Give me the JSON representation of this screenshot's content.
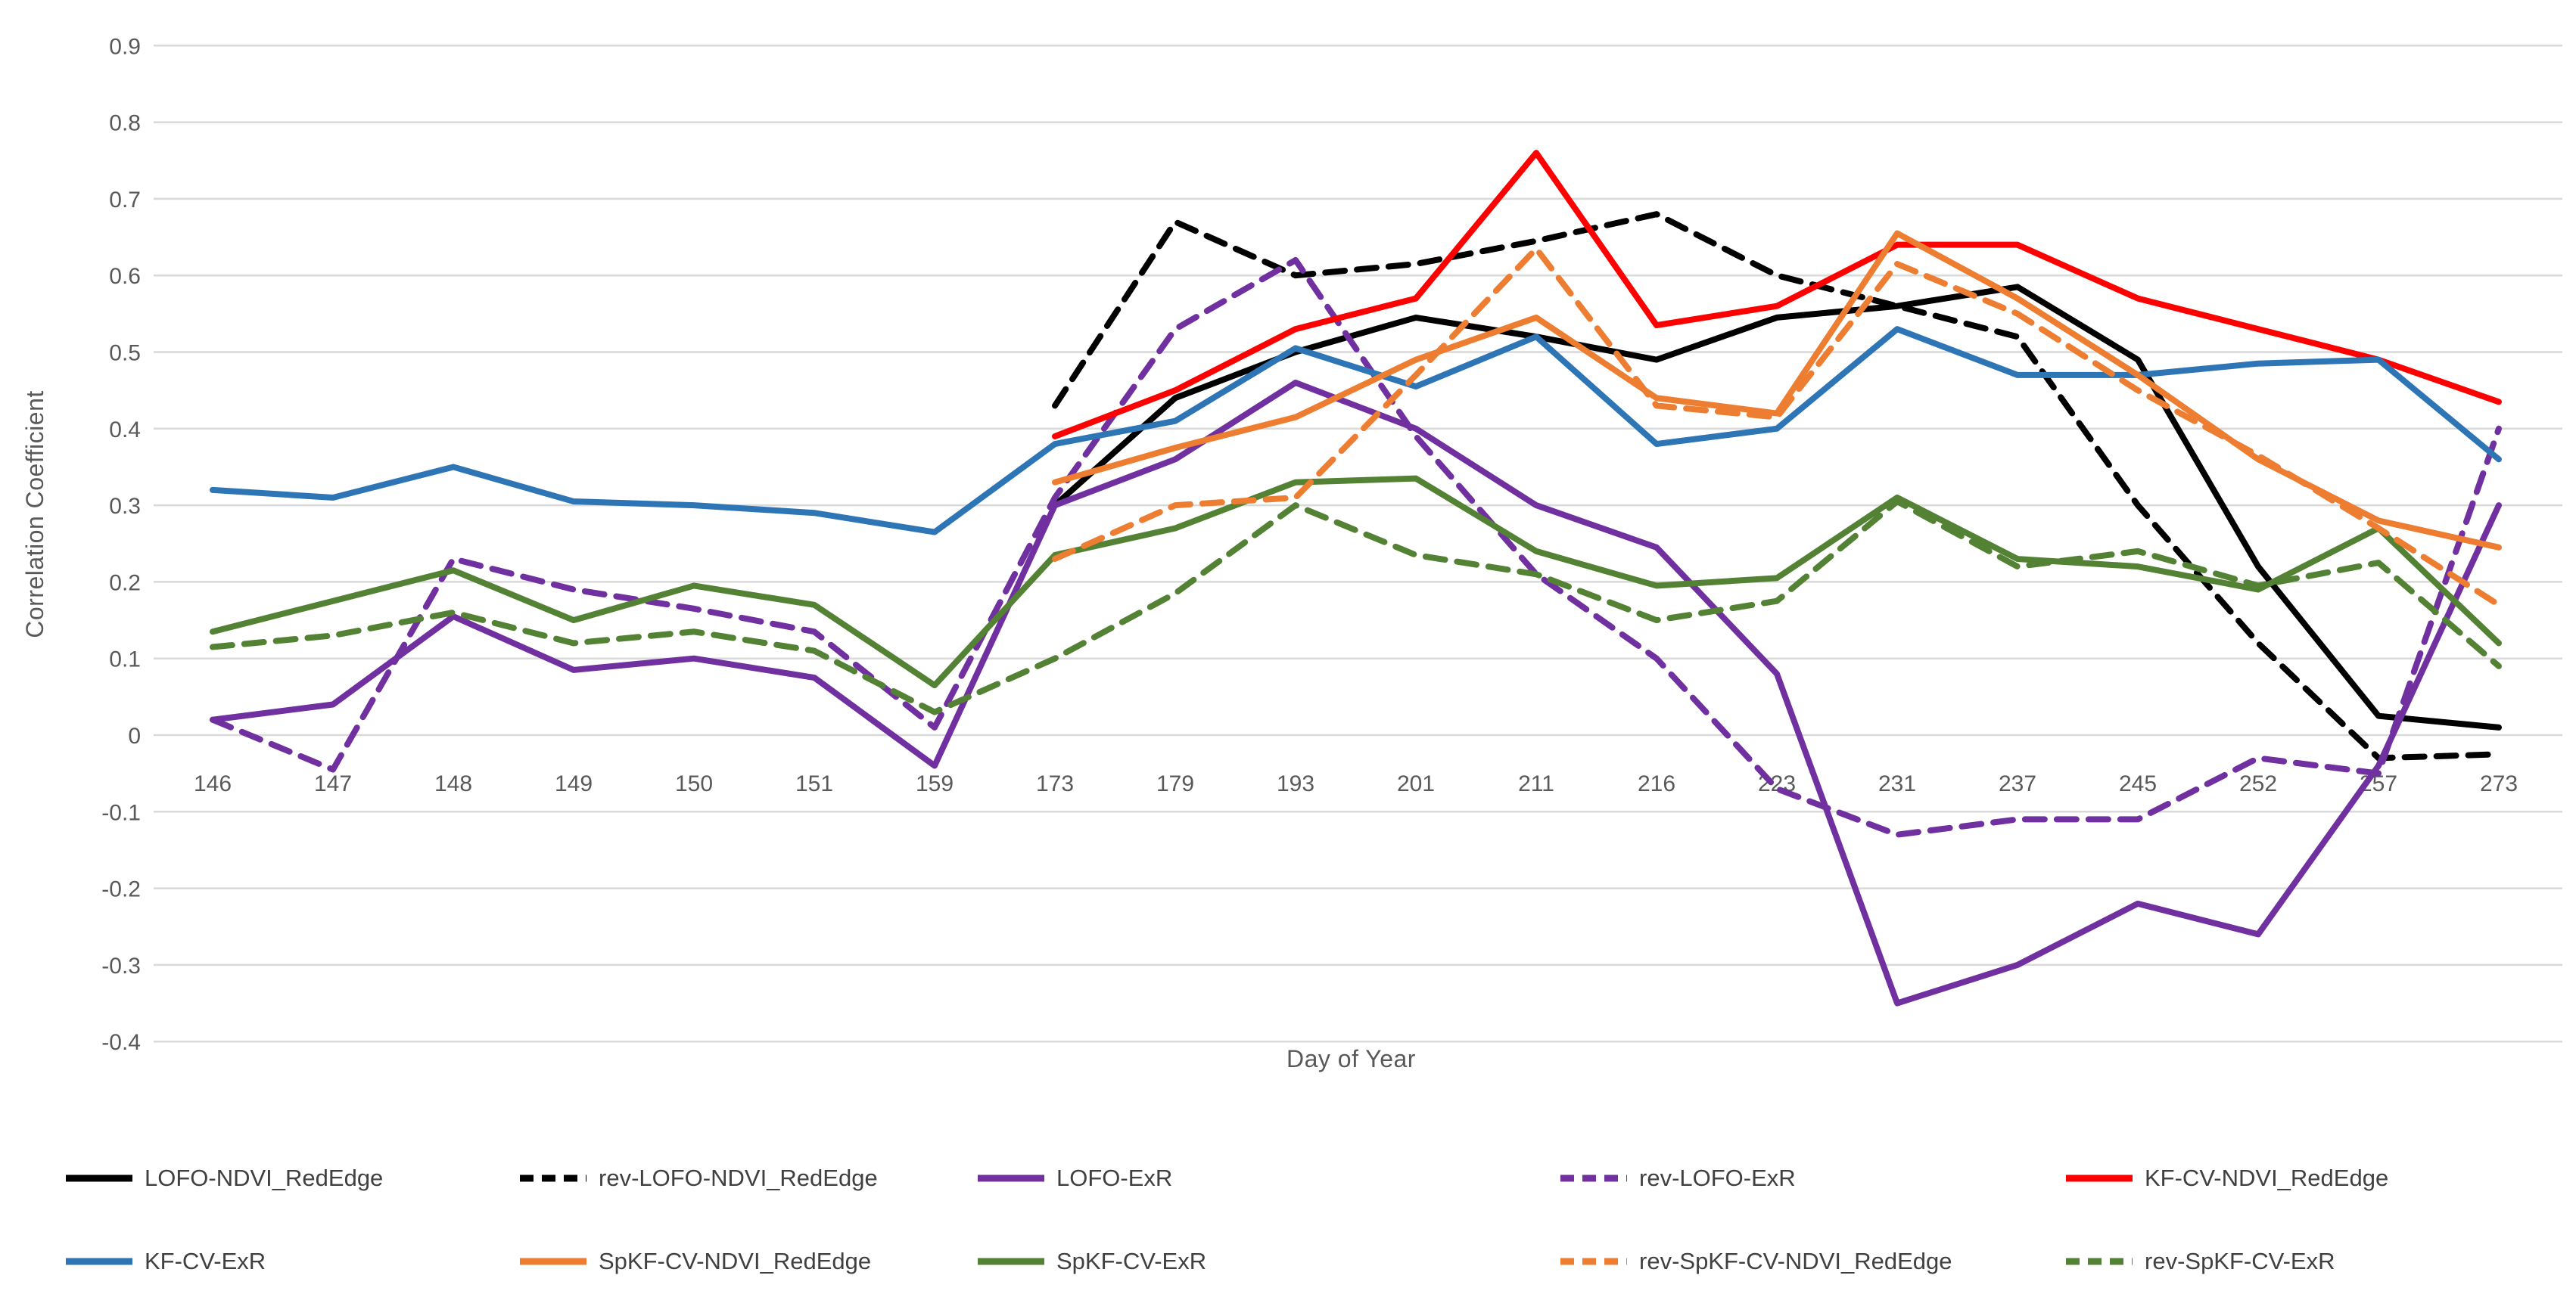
{
  "chart_data": {
    "type": "line",
    "title": "",
    "xlabel": "Day of Year",
    "ylabel": "Correlation Coefficient",
    "ylim": [
      -0.4,
      0.9
    ],
    "grid": true,
    "legend_position": "bottom",
    "ytick_labels": [
      "0.9",
      "0.8",
      "0.7",
      "0.6",
      "0.5",
      "0.4",
      "0.3",
      "0.2",
      "0.1",
      "0",
      "-0.1",
      "-0.2",
      "-0.3",
      "-0.4"
    ],
    "ytick_values": [
      0.9,
      0.8,
      0.7,
      0.6,
      0.5,
      0.4,
      0.3,
      0.2,
      0.1,
      0,
      -0.1,
      -0.2,
      -0.3,
      -0.4
    ],
    "categories": [
      "146",
      "147",
      "148",
      "149",
      "150",
      "151",
      "159",
      "173",
      "179",
      "193",
      "201",
      "211",
      "216",
      "223",
      "231",
      "237",
      "245",
      "252",
      "257",
      "273"
    ],
    "series": [
      {
        "name": "LOFO-NDVI_RedEdge",
        "color": "#000000",
        "dash": false,
        "values": [
          null,
          null,
          null,
          null,
          null,
          null,
          null,
          0.3,
          0.44,
          0.5,
          0.545,
          0.52,
          0.49,
          0.545,
          0.56,
          0.585,
          0.49,
          0.22,
          0.025,
          0.01
        ]
      },
      {
        "name": "rev-LOFO-NDVI_RedEdge",
        "color": "#000000",
        "dash": true,
        "values": [
          null,
          null,
          null,
          null,
          null,
          null,
          null,
          0.43,
          0.67,
          0.6,
          0.615,
          0.645,
          0.68,
          0.6,
          0.56,
          0.52,
          0.3,
          0.12,
          -0.03,
          -0.025
        ]
      },
      {
        "name": "LOFO-ExR",
        "color": "#7030A0",
        "dash": false,
        "values": [
          0.02,
          0.04,
          0.155,
          0.085,
          0.1,
          0.075,
          -0.04,
          0.3,
          0.36,
          0.46,
          0.4,
          0.3,
          0.245,
          0.08,
          -0.35,
          -0.3,
          -0.22,
          -0.26,
          -0.04,
          0.3
        ]
      },
      {
        "name": "rev-LOFO-ExR",
        "color": "#7030A0",
        "dash": true,
        "values": [
          0.02,
          -0.045,
          0.23,
          0.19,
          0.165,
          0.135,
          0.01,
          0.31,
          0.53,
          0.62,
          0.39,
          0.21,
          0.1,
          -0.07,
          -0.13,
          -0.11,
          -0.11,
          -0.03,
          -0.05,
          0.4
        ]
      },
      {
        "name": "KF-CV-NDVI_RedEdge",
        "color": "#FF0000",
        "dash": false,
        "values": [
          null,
          null,
          null,
          null,
          null,
          null,
          null,
          0.39,
          0.45,
          0.53,
          0.57,
          0.76,
          0.535,
          0.56,
          0.64,
          0.64,
          0.57,
          0.53,
          0.49,
          0.435
        ]
      },
      {
        "name": "KF-CV-ExR",
        "color": "#2E75B6",
        "dash": false,
        "values": [
          0.32,
          0.31,
          0.35,
          0.305,
          0.3,
          0.29,
          0.265,
          0.38,
          0.41,
          0.505,
          0.455,
          0.52,
          0.38,
          0.4,
          0.53,
          0.47,
          0.47,
          0.485,
          0.49,
          0.36
        ]
      },
      {
        "name": "SpKF-CV-NDVI_RedEdge",
        "color": "#ED7D31",
        "dash": false,
        "values": [
          null,
          null,
          null,
          null,
          null,
          null,
          null,
          0.33,
          0.375,
          0.415,
          0.49,
          0.545,
          0.44,
          0.42,
          0.655,
          0.57,
          0.47,
          0.36,
          0.28,
          0.245
        ]
      },
      {
        "name": "SpKF-CV-ExR",
        "color": "#548235",
        "dash": false,
        "values": [
          0.135,
          0.175,
          0.215,
          0.15,
          0.195,
          0.17,
          0.065,
          0.235,
          0.27,
          0.33,
          0.335,
          0.24,
          0.195,
          0.205,
          0.31,
          0.23,
          0.22,
          0.19,
          0.27,
          0.12
        ]
      },
      {
        "name": "rev-SpKF-CV-NDVI_RedEdge",
        "color": "#ED7D31",
        "dash": true,
        "values": [
          null,
          null,
          null,
          null,
          null,
          null,
          null,
          0.23,
          0.3,
          0.31,
          0.47,
          0.635,
          0.43,
          0.415,
          0.615,
          0.55,
          0.45,
          0.365,
          0.27,
          0.17
        ]
      },
      {
        "name": "rev-SpKF-CV-ExR",
        "color": "#548235",
        "dash": true,
        "values": [
          0.115,
          0.13,
          0.16,
          0.12,
          0.135,
          0.11,
          0.03,
          0.1,
          0.185,
          0.3,
          0.235,
          0.21,
          0.15,
          0.175,
          0.305,
          0.22,
          0.24,
          0.195,
          0.225,
          0.09
        ]
      }
    ],
    "colors": {
      "gridline": "#D9D9D9",
      "tick_text": "#595959",
      "legend_text": "#404040",
      "background": "#FFFFFF"
    }
  }
}
